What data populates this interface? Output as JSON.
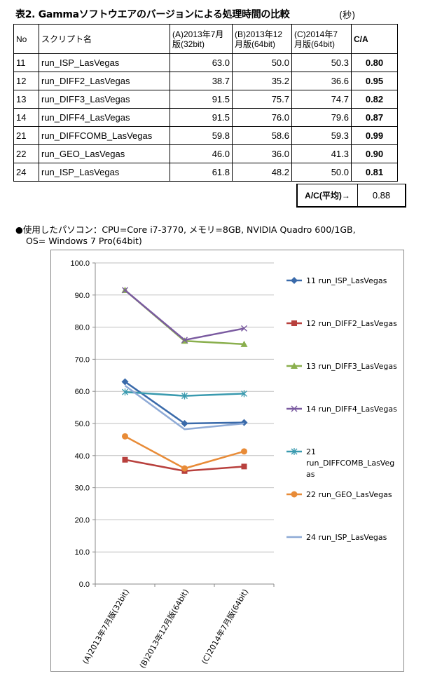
{
  "title": "表2. Gammaソフトウエアのバージョンによる処理時間の比較",
  "unit": "(秒)",
  "table": {
    "headers": {
      "no": "No",
      "name": "スクリプト名",
      "a_l1": "(A)2013年7月",
      "a_l2": "版(32bit)",
      "b_l1": "(B)2013年12",
      "b_l2": "月版(64bit)",
      "c_l1": "(C)2014年7",
      "c_l2": "月版(64bit)",
      "ratio": "C/A"
    },
    "rows": [
      {
        "no": "11",
        "name": "run_ISP_LasVegas",
        "a": "63.0",
        "b": "50.0",
        "c": "50.3",
        "ratio": "0.80"
      },
      {
        "no": "12",
        "name": "run_DIFF2_LasVegas",
        "a": "38.7",
        "b": "35.2",
        "c": "36.6",
        "ratio": "0.95"
      },
      {
        "no": "13",
        "name": "run_DIFF3_LasVegas",
        "a": "91.5",
        "b": "75.7",
        "c": "74.7",
        "ratio": "0.82"
      },
      {
        "no": "14",
        "name": "run_DIFF4_LasVegas",
        "a": "91.5",
        "b": "76.0",
        "c": "79.6",
        "ratio": "0.87"
      },
      {
        "no": "21",
        "name": "run_DIFFCOMB_LasVegas",
        "a": "59.8",
        "b": "58.6",
        "c": "59.3",
        "ratio": "0.99"
      },
      {
        "no": "22",
        "name": "run_GEO_LasVegas",
        "a": "46.0",
        "b": "36.0",
        "c": "41.3",
        "ratio": "0.90"
      },
      {
        "no": "24",
        "name": "run_ISP_LasVegas",
        "a": "61.8",
        "b": "48.2",
        "c": "50.0",
        "ratio": "0.81"
      }
    ],
    "avg_label": "A/C(平均)→",
    "avg_value": "0.88"
  },
  "spec_line1": "●使用したパソコン：CPU=Core i7-3770, メモリ=8GB, NVIDIA Quadro 600/1GB,",
  "spec_line2": "OS= Windows 7 Pro(64bit)",
  "chart_data": {
    "type": "line",
    "categories": [
      "(A)2013年7月版(32bit)",
      "(B)2013年12月版(64bit)",
      "(C)2014年7月版(64bit)"
    ],
    "ylim": [
      0,
      100
    ],
    "yticks": [
      "0.0",
      "10.0",
      "20.0",
      "30.0",
      "40.0",
      "50.0",
      "60.0",
      "70.0",
      "80.0",
      "90.0",
      "100.0"
    ],
    "legend_position": "right",
    "series": [
      {
        "name": "11 run_ISP_LasVegas",
        "legend_lines": [
          "11 run_ISP_LasVegas"
        ],
        "values": [
          63.0,
          50.0,
          50.3
        ],
        "color": "#3a6aaa",
        "marker": "diamond"
      },
      {
        "name": "12 run_DIFF2_LasVegas",
        "legend_lines": [
          "12 run_DIFF2_LasVegas"
        ],
        "values": [
          38.7,
          35.2,
          36.6
        ],
        "color": "#b8403d",
        "marker": "square"
      },
      {
        "name": "13 run_DIFF3_LasVegas",
        "legend_lines": [
          "13 run_DIFF3_LasVegas"
        ],
        "values": [
          91.5,
          75.7,
          74.7
        ],
        "color": "#8aaf4e",
        "marker": "triangle"
      },
      {
        "name": "14 run_DIFF4_LasVegas",
        "legend_lines": [
          "14 run_DIFF4_LasVegas"
        ],
        "values": [
          91.5,
          76.0,
          79.6
        ],
        "color": "#7a5aa0",
        "marker": "x"
      },
      {
        "name": "21 run_DIFFCOMB_LasVegas",
        "legend_lines": [
          "21",
          "run_DIFFCOMB_LasVeg",
          "as"
        ],
        "values": [
          59.8,
          58.6,
          59.3
        ],
        "color": "#3a9aaf",
        "marker": "star"
      },
      {
        "name": "22 run_GEO_LasVegas",
        "legend_lines": [
          "22 run_GEO_LasVegas"
        ],
        "values": [
          46.0,
          36.0,
          41.3
        ],
        "color": "#e88b37",
        "marker": "circle"
      },
      {
        "name": "24 run_ISP_LasVegas",
        "legend_lines": [
          "24 run_ISP_LasVegas"
        ],
        "values": [
          61.8,
          48.2,
          50.0
        ],
        "color": "#8eaad6",
        "marker": "none"
      }
    ]
  }
}
